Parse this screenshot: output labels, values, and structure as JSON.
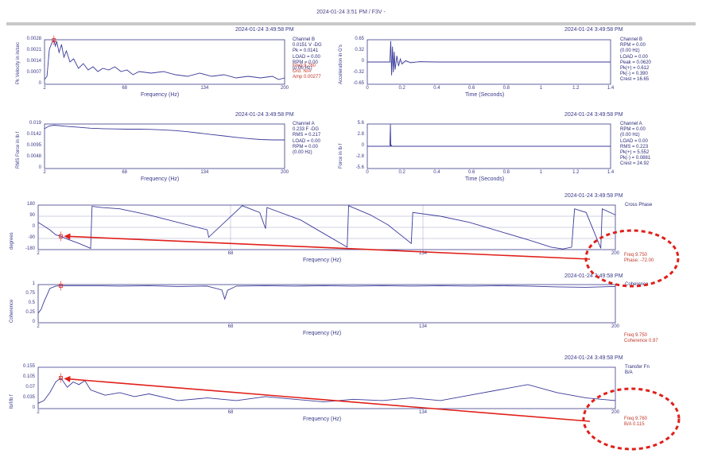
{
  "header": {
    "title": "2024-01-24 3:51 PM / F3V -"
  },
  "colors": {
    "trace": "#3b3b9a",
    "axis": "#3a3a8a",
    "grid": "#8c8cbf",
    "annot": "#e0201a",
    "readout": "#c0392b"
  },
  "panels": [
    {
      "id": "pk-velocity",
      "timestamp": "2024-01-24 3:49:58 PM",
      "ylabel": "Pk Velocity in in/sec",
      "xlabel": "Frequency (Hz)",
      "yticks": [
        "0.0028",
        "0.0021",
        "0.0014",
        "0.0007",
        "0"
      ],
      "xticks": [
        "2",
        "68",
        "134",
        "200"
      ],
      "info": [
        "Channel B",
        "0.0151 V -DG",
        "Pk = 0.0141",
        "LOAD = 0.00",
        "RPM = 0.00",
        "(0.00 Hz)"
      ],
      "readout": [
        "Freq 9.760",
        "Ord. N/A",
        "Amp 0.00277"
      ]
    },
    {
      "id": "acceleration",
      "timestamp": "2024-01-24 3:49:58 PM",
      "ylabel": "Acceleration in G's",
      "xlabel": "Time (Seconds)",
      "yticks": [
        "0.65",
        "0.32",
        "0",
        "-0.32",
        "-0.65"
      ],
      "xticks": [
        "0",
        "0.2",
        "0.4",
        "0.6",
        "0.8",
        "1",
        "1.2",
        "1.4"
      ],
      "info": [
        "Channel B",
        "RPM = 0.00",
        "(0.00 Hz)",
        "LOAD = 0.00",
        "Peak = 0.0620",
        "Pk(+) = 0.612",
        "Pk(-) = 0.390",
        "Crest = 16.65"
      ]
    },
    {
      "id": "rms-force",
      "timestamp": "2024-01-24 3:49:58 PM",
      "ylabel": "RMS Force in lb f",
      "xlabel": "Frequency (Hz)",
      "yticks": [
        "0.019",
        "0.0142",
        "0.0095",
        "0.0048",
        "0"
      ],
      "xticks": [
        "2",
        "68",
        "134",
        "200"
      ],
      "info": [
        "Channel A",
        "0.233 F -DG",
        "RMS = 0.217",
        "LOAD = 0.00",
        "RPM = 0.00",
        "(0.00 Hz)"
      ]
    },
    {
      "id": "force-time",
      "timestamp": "2024-01-24 3:49:58 PM",
      "ylabel": "Force in lb f",
      "xlabel": "Time (Seconds)",
      "yticks": [
        "5.6",
        "2.8",
        "0",
        "-2.8",
        "-5.6"
      ],
      "xticks": [
        "0",
        "0.2",
        "0.4",
        "0.6",
        "0.8",
        "1",
        "1.2",
        "1.4"
      ],
      "info": [
        "Channel A",
        "RPM = 0.00",
        "(0.00 Hz)",
        "LOAD = 0.00",
        "RMS = 0.223",
        "Pk(+) = 5.552",
        "Pk(-) = 0.0881",
        "Crest = 24.92"
      ]
    },
    {
      "id": "cross-phase",
      "timestamp": "2024-01-24 3:49:58 PM",
      "ylabel": "degrees",
      "xlabel": "Frequency (Hz)",
      "yticks": [
        "180",
        "90",
        "0",
        "-90",
        "-180"
      ],
      "xticks": [
        "2",
        "68",
        "134",
        "200"
      ],
      "info": [
        "Cross Phase"
      ],
      "readout": [
        "Freq 9.750",
        "Phase: -72.00"
      ]
    },
    {
      "id": "coherence",
      "timestamp": "2024-01-24 3:49:58 PM",
      "ylabel": "Coherence",
      "xlabel": "Frequency (Hz)",
      "yticks": [
        "1",
        "0.75",
        "0.5",
        "0.25",
        "0"
      ],
      "xticks": [
        "2",
        "68",
        "134",
        "200"
      ],
      "info": [
        "Coherence"
      ],
      "readout": [
        "Freq 9.750",
        "Coherence 0.97"
      ]
    },
    {
      "id": "transfer-fn",
      "timestamp": "2024-01-24 3:49:58 PM",
      "ylabel": "lb/f/lb f",
      "xlabel": "Frequency (Hz)",
      "yticks": [
        "0.155",
        "0.105",
        "0.07",
        "0.035",
        "0"
      ],
      "xticks": [
        "2",
        "68",
        "134",
        "200"
      ],
      "info": [
        "Transfer Fn",
        "B/A"
      ],
      "readout": [
        "Freq 9.760",
        "B/A 0.115"
      ]
    }
  ],
  "chart_data": [
    {
      "type": "line",
      "title": "",
      "xlabel": "Frequency (Hz)",
      "ylabel": "Pk Velocity in in/sec",
      "xlim": [
        2,
        200
      ],
      "ylim": [
        0,
        0.0028
      ],
      "grid": false,
      "x": [
        2,
        4,
        6,
        8,
        9.76,
        11,
        12,
        14,
        16,
        18,
        20,
        23,
        26,
        30,
        34,
        38,
        42,
        46,
        50,
        55,
        60,
        65,
        70,
        75,
        80,
        90,
        100,
        110,
        120,
        130,
        140,
        150,
        160,
        170,
        180,
        190,
        195,
        200
      ],
      "series": [
        {
          "values": [
            0.0003,
            0.0005,
            0.0022,
            0.0026,
            0.00277,
            0.0024,
            0.0027,
            0.002,
            0.0025,
            0.0017,
            0.0021,
            0.0014,
            0.0016,
            0.001,
            0.0013,
            0.0009,
            0.0011,
            0.0008,
            0.001,
            0.0009,
            0.0011,
            0.0008,
            0.0009,
            0.0006,
            0.0008,
            0.0007,
            0.0008,
            0.0006,
            0.0005,
            0.0007,
            0.0005,
            0.0006,
            0.0004,
            0.0005,
            0.0004,
            0.0005,
            0.0003,
            0.0004
          ]
        }
      ]
    },
    {
      "type": "line",
      "title": "",
      "xlabel": "Time (Seconds)",
      "ylabel": "Acceleration in G's",
      "xlim": [
        0,
        1.4
      ],
      "ylim": [
        -0.65,
        0.65
      ],
      "grid": false,
      "x": [
        0,
        0.13,
        0.135,
        0.14,
        0.145,
        0.15,
        0.155,
        0.16,
        0.17,
        0.18,
        0.19,
        0.2,
        0.22,
        0.25,
        0.3,
        0.4,
        1.4
      ],
      "series": [
        {
          "values": [
            0,
            0,
            0.61,
            -0.39,
            0.45,
            -0.3,
            0.3,
            -0.22,
            0.18,
            -0.12,
            0.09,
            -0.06,
            0.04,
            -0.02,
            0.01,
            0,
            0
          ]
        }
      ]
    },
    {
      "type": "line",
      "title": "",
      "xlabel": "Frequency (Hz)",
      "ylabel": "RMS Force in lb f",
      "xlim": [
        2,
        200
      ],
      "ylim": [
        0,
        0.019
      ],
      "grid": false,
      "x": [
        2,
        6,
        10,
        20,
        30,
        40,
        50,
        60,
        70,
        80,
        90,
        100,
        110,
        120,
        130,
        140,
        150,
        160,
        170,
        180,
        190,
        200
      ],
      "series": [
        {
          "values": [
            0.017,
            0.0182,
            0.0185,
            0.018,
            0.0176,
            0.0172,
            0.017,
            0.0169,
            0.0168,
            0.0168,
            0.0167,
            0.0165,
            0.0162,
            0.0157,
            0.0151,
            0.0145,
            0.0139,
            0.0133,
            0.0128,
            0.0124,
            0.0122,
            0.0122
          ]
        }
      ]
    },
    {
      "type": "line",
      "title": "",
      "xlabel": "Time (Seconds)",
      "ylabel": "Force in lb f",
      "xlim": [
        0,
        1.4
      ],
      "ylim": [
        -5.6,
        5.6
      ],
      "grid": false,
      "x": [
        0,
        0.13,
        0.133,
        0.135,
        0.137,
        0.14,
        1.4
      ],
      "series": [
        {
          "values": [
            0,
            0,
            5.55,
            -0.09,
            0.4,
            0,
            0
          ]
        }
      ]
    },
    {
      "type": "line",
      "title": "",
      "xlabel": "Frequency (Hz)",
      "ylabel": "degrees",
      "xlim": [
        2,
        200
      ],
      "ylim": [
        -180,
        180
      ],
      "grid": true,
      "x": [
        2,
        4,
        6,
        8,
        9.75,
        12,
        16,
        20,
        20.5,
        24,
        30,
        40,
        50,
        60,
        60.5,
        72,
        78,
        80,
        80.5,
        92,
        100,
        108,
        108.5,
        116,
        122,
        130,
        130.5,
        140,
        150,
        160,
        170,
        178,
        182,
        185,
        186,
        190,
        195,
        195.5,
        200
      ],
      "series": [
        {
          "values": [
            40,
            10,
            -20,
            -60,
            -72,
            -95,
            -130,
            -170,
            170,
            160,
            150,
            100,
            40,
            -20,
            -80,
            175,
            120,
            -10,
            160,
            60,
            -50,
            -160,
            175,
            100,
            20,
            -130,
            120,
            90,
            40,
            -30,
            -100,
            -160,
            -175,
            -160,
            150,
            120,
            -170,
            150,
            100
          ]
        }
      ]
    },
    {
      "type": "line",
      "title": "",
      "xlabel": "Frequency (Hz)",
      "ylabel": "Coherence",
      "xlim": [
        2,
        200
      ],
      "ylim": [
        0,
        1
      ],
      "grid": false,
      "x": [
        2,
        3,
        4,
        5,
        6,
        8,
        9.75,
        12,
        20,
        30,
        40,
        50,
        60,
        65,
        66,
        67,
        70,
        80,
        90,
        100,
        110,
        120,
        130,
        140,
        150,
        160,
        170,
        180,
        190,
        200
      ],
      "series": [
        {
          "values": [
            0.25,
            0.35,
            0.55,
            0.72,
            0.9,
            0.96,
            0.97,
            0.97,
            0.97,
            0.96,
            0.97,
            0.95,
            0.96,
            0.86,
            0.62,
            0.85,
            0.96,
            0.97,
            0.96,
            0.97,
            0.96,
            0.97,
            0.96,
            0.97,
            0.96,
            0.97,
            0.96,
            0.94,
            0.93,
            0.95
          ]
        }
      ]
    },
    {
      "type": "line",
      "title": "",
      "xlabel": "Frequency (Hz)",
      "ylabel": "lb/f/lb f",
      "xlim": [
        2,
        200
      ],
      "ylim": [
        0,
        0.155
      ],
      "grid": false,
      "x": [
        2,
        4,
        6,
        8,
        9.76,
        12,
        14,
        16,
        18,
        20,
        25,
        30,
        35,
        40,
        50,
        60,
        70,
        80,
        90,
        100,
        110,
        120,
        130,
        140,
        150,
        160,
        170,
        180,
        190,
        200
      ],
      "series": [
        {
          "values": [
            0.02,
            0.03,
            0.06,
            0.1,
            0.115,
            0.08,
            0.1,
            0.09,
            0.105,
            0.07,
            0.05,
            0.06,
            0.045,
            0.055,
            0.03,
            0.04,
            0.03,
            0.045,
            0.035,
            0.025,
            0.035,
            0.03,
            0.04,
            0.03,
            0.05,
            0.07,
            0.09,
            0.06,
            0.04,
            0.03
          ]
        }
      ]
    }
  ]
}
